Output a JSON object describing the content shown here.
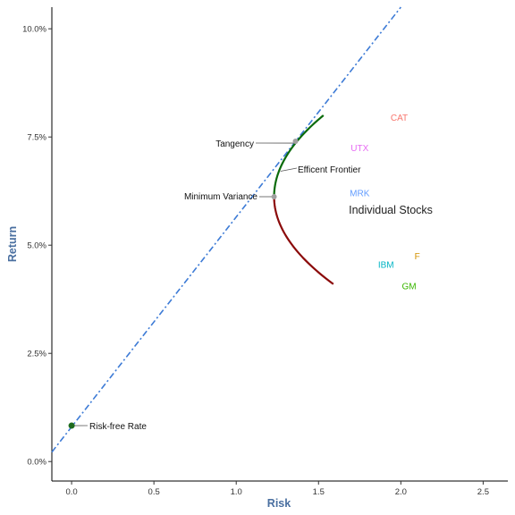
{
  "chart_data": {
    "type": "line",
    "xlabel": "Risk",
    "ylabel": "Return",
    "xlim": [
      -0.12,
      2.65
    ],
    "ylim": [
      -0.45,
      10.5
    ],
    "x_ticks": [
      0,
      0.5,
      1,
      1.5,
      2,
      2.5
    ],
    "x_tick_labels": [
      "0.0",
      "0.5",
      "1.0",
      "1.5",
      "2.0",
      "2.5"
    ],
    "y_ticks": [
      0,
      2.5,
      5,
      7.5,
      10
    ],
    "y_tick_labels": [
      "0.0%",
      "2.5%",
      "5.0%",
      "7.5%",
      "10.0%"
    ],
    "grid": false,
    "colors": {
      "capital_market_line": "#3d7bd6",
      "efficient_frontier": "#0b6b0b",
      "inefficient_frontier": "#8b0a0a",
      "special_points": "#a0a0a0",
      "risk_free_point": "#1e6b1e",
      "axis_title": "#4a6fa0"
    },
    "capital_market_line": {
      "style": "dash-dot",
      "points": [
        [
          -0.12,
          0.22
        ],
        [
          2.0,
          10.5
        ]
      ]
    },
    "frontier": {
      "vertex": {
        "risk": 1.23,
        "return": 6.12
      },
      "upper_end": {
        "risk": 1.53,
        "return": 8.0
      },
      "lower_end": {
        "risk": 1.59,
        "return": 4.1
      }
    },
    "points": [
      {
        "id": "tangency",
        "label": "Tangency",
        "risk": 1.36,
        "return": 7.4
      },
      {
        "id": "minimum-variance",
        "label": "Minimum Variance",
        "risk": 1.23,
        "return": 6.12
      },
      {
        "id": "risk-free",
        "label": "Risk-free Rate",
        "risk": 0.0,
        "return": 0.83
      }
    ],
    "frontier_annotation": {
      "label": "Efficent Frontier",
      "risk": 1.28,
      "return": 6.75
    },
    "stocks_group_label": "Individual Stocks",
    "stocks": [
      {
        "ticker": "CAT",
        "risk": 1.99,
        "return": 7.95,
        "color": "#f8766d"
      },
      {
        "ticker": "UTX",
        "risk": 1.75,
        "return": 7.25,
        "color": "#e76bf3"
      },
      {
        "ticker": "MRK",
        "risk": 1.75,
        "return": 6.2,
        "color": "#619cff"
      },
      {
        "ticker": "F",
        "risk": 2.1,
        "return": 4.75,
        "color": "#d39200"
      },
      {
        "ticker": "IBM",
        "risk": 1.91,
        "return": 4.55,
        "color": "#00b4c4"
      },
      {
        "ticker": "GM",
        "risk": 2.05,
        "return": 4.05,
        "color": "#39b600"
      }
    ]
  }
}
